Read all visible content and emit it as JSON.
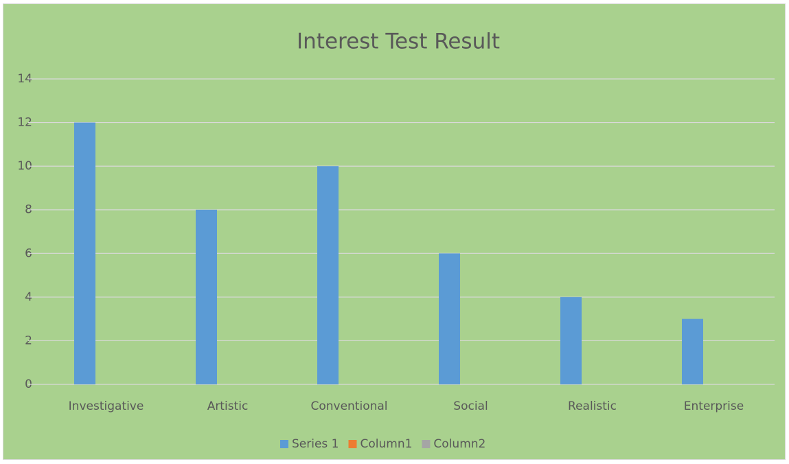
{
  "chart_data": {
    "type": "bar",
    "title": "Interest Test Result",
    "categories": [
      "Investigative",
      "Artistic",
      "Conventional",
      "Social",
      "Realistic",
      "Enterprise"
    ],
    "series": [
      {
        "name": "Series 1",
        "color": "#5b9bd5",
        "values": [
          12,
          8,
          10,
          6,
          4,
          3
        ]
      },
      {
        "name": "Column1",
        "color": "#ed7d31",
        "values": [
          null,
          null,
          null,
          null,
          null,
          null
        ]
      },
      {
        "name": "Column2",
        "color": "#a5a5a5",
        "values": [
          null,
          null,
          null,
          null,
          null,
          null
        ]
      }
    ],
    "ylim": [
      0,
      14
    ],
    "yticks": [
      0,
      2,
      4,
      6,
      8,
      10,
      12,
      14
    ],
    "grid": true,
    "legend": "bottom"
  }
}
